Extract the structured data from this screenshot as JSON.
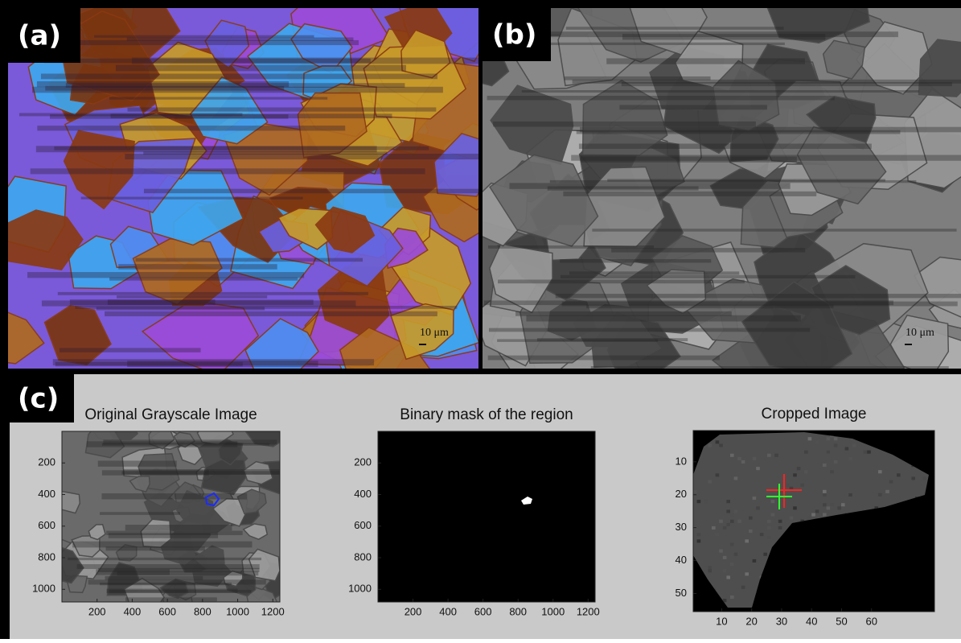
{
  "panels": {
    "a": {
      "label": "(a)",
      "scale_bar": "10 μm"
    },
    "b": {
      "label": "(b)",
      "scale_bar": "10 μm"
    },
    "c": {
      "label": "(c)"
    }
  },
  "chart_data": [
    {
      "type": "image",
      "title": "Original Grayscale Image",
      "xlim": [
        0,
        1240
      ],
      "ylim": [
        0,
        1080
      ],
      "xticks": [
        200,
        400,
        600,
        800,
        1000,
        1200
      ],
      "yticks": [
        200,
        400,
        600,
        800,
        1000
      ]
    },
    {
      "type": "image",
      "title": "Binary mask of the region",
      "xlim": [
        0,
        1240
      ],
      "ylim": [
        0,
        1080
      ],
      "xticks": [
        200,
        400,
        600,
        800,
        1000,
        1200
      ],
      "yticks": [
        200,
        400,
        600,
        800,
        1000
      ]
    },
    {
      "type": "image",
      "title": "Cropped Image",
      "xlim": [
        0.5,
        81
      ],
      "ylim": [
        0.5,
        55.5
      ],
      "xticks": [
        10,
        20,
        30,
        40,
        50,
        60
      ],
      "yticks": [
        10,
        20,
        30,
        40,
        50
      ]
    }
  ]
}
